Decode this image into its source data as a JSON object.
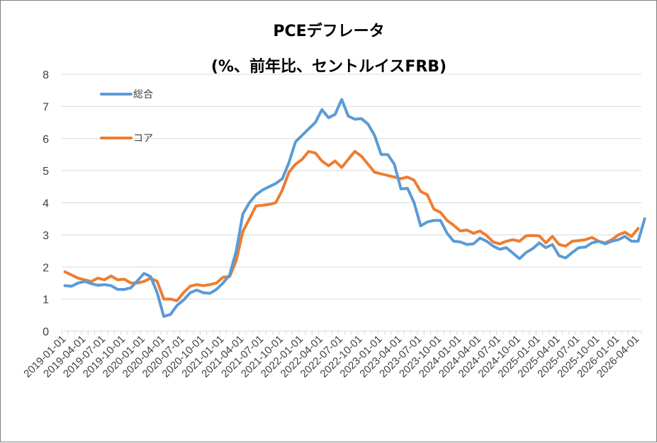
{
  "chart_data": {
    "type": "line",
    "title": "PCEデフレータ",
    "subtitle": "(%、前年比、セントルイスFRB)",
    "ylim": [
      0,
      8
    ],
    "yticks": [
      0,
      1,
      2,
      3,
      4,
      5,
      6,
      7,
      8
    ],
    "grid": true,
    "legend_position": "top-left",
    "x_tick_labels": [
      "2019-01-01",
      "2019-04-01",
      "2019-07-01",
      "2019-10-01",
      "2020-01-01",
      "2020-04-01",
      "2020-07-01",
      "2020-10-01",
      "2021-01-01",
      "2021-04-01",
      "2021-07-01",
      "2021-10-01",
      "2022-01-01",
      "2022-04-01",
      "2022-07-01",
      "2022-10-01",
      "2023-01-01",
      "2023-04-01",
      "2023-07-01",
      "2023-10-01",
      "2024-01-01",
      "2024-04-01",
      "2024-07-01",
      "2024-10-01",
      "2025-01-01",
      "2025-04-01",
      "2025-07-01",
      "2025-10-01",
      "2026-01-01",
      "2026-04-01"
    ],
    "x_start": "2019-01",
    "series": [
      {
        "name": "総合",
        "color": "#5b9bd5",
        "values": [
          1.42,
          1.4,
          1.5,
          1.55,
          1.48,
          1.43,
          1.45,
          1.42,
          1.3,
          1.3,
          1.35,
          1.57,
          1.8,
          1.7,
          1.2,
          0.46,
          0.52,
          0.8,
          0.97,
          1.2,
          1.28,
          1.2,
          1.18,
          1.3,
          1.5,
          1.75,
          2.5,
          3.65,
          4.0,
          4.25,
          4.4,
          4.5,
          4.6,
          4.75,
          5.25,
          5.9,
          6.1,
          6.3,
          6.5,
          6.9,
          6.65,
          6.75,
          7.22,
          6.7,
          6.6,
          6.62,
          6.45,
          6.1,
          5.5,
          5.5,
          5.2,
          4.43,
          4.45,
          4.0,
          3.28,
          3.4,
          3.45,
          3.45,
          3.05,
          2.8,
          2.78,
          2.7,
          2.72,
          2.9,
          2.8,
          2.65,
          2.55,
          2.6,
          2.43,
          2.26,
          2.45,
          2.57,
          2.75,
          2.6,
          2.7,
          2.35,
          2.28,
          2.45,
          2.6,
          2.62,
          2.75,
          2.8,
          2.72,
          2.8,
          2.85,
          2.95,
          2.8,
          2.8,
          3.5
        ]
      },
      {
        "name": "コア",
        "color": "#ed7d31",
        "values": [
          1.85,
          1.75,
          1.65,
          1.6,
          1.55,
          1.65,
          1.6,
          1.72,
          1.6,
          1.62,
          1.5,
          1.5,
          1.55,
          1.65,
          1.55,
          1.0,
          1.0,
          0.95,
          1.2,
          1.4,
          1.45,
          1.42,
          1.45,
          1.5,
          1.68,
          1.7,
          2.2,
          3.1,
          3.5,
          3.9,
          3.92,
          3.95,
          4.0,
          4.4,
          4.95,
          5.2,
          5.35,
          5.6,
          5.55,
          5.3,
          5.15,
          5.3,
          5.1,
          5.35,
          5.6,
          5.45,
          5.2,
          4.95,
          4.9,
          4.85,
          4.8,
          4.75,
          4.8,
          4.7,
          4.35,
          4.25,
          3.8,
          3.7,
          3.45,
          3.3,
          3.12,
          3.15,
          3.05,
          3.12,
          2.98,
          2.78,
          2.72,
          2.8,
          2.85,
          2.8,
          2.97,
          2.98,
          2.97,
          2.75,
          2.95,
          2.7,
          2.65,
          2.8,
          2.82,
          2.85,
          2.92,
          2.8,
          2.75,
          2.85,
          3.0,
          3.08,
          2.95,
          3.2
        ]
      }
    ]
  }
}
